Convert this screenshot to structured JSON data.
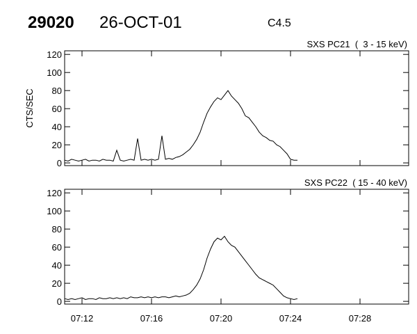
{
  "header": {
    "id": "29020",
    "date": "26-OCT-01",
    "class": "C4.5"
  },
  "chart_data": [
    {
      "type": "line",
      "title": "SXS PC21  (  3 - 15 keV)",
      "y_label": "CTS/SEC",
      "x": [
        431.0,
        431.2,
        431.4,
        431.6,
        431.8,
        432.0,
        432.2,
        432.4,
        432.6,
        432.8,
        433.0,
        433.2,
        433.4,
        433.6,
        433.8,
        434.0,
        434.2,
        434.4,
        434.6,
        434.8,
        435.0,
        435.2,
        435.4,
        435.6,
        435.8,
        436.0,
        436.2,
        436.4,
        436.6,
        436.8,
        437.0,
        437.2,
        437.4,
        437.6,
        437.8,
        438.0,
        438.2,
        438.4,
        438.6,
        438.8,
        439.0,
        439.2,
        439.4,
        439.6,
        439.8,
        440.0,
        440.2,
        440.4,
        440.6,
        440.8,
        441.0,
        441.2,
        441.4,
        441.6,
        441.8,
        442.0,
        442.2,
        442.4,
        442.6,
        442.8,
        443.0,
        443.2,
        443.4,
        443.6,
        443.8,
        444.0,
        444.2,
        444.4
      ],
      "series": [
        {
          "color": "#000000",
          "values": [
            3,
            2,
            4,
            3,
            2,
            3,
            4,
            2,
            3,
            3,
            2,
            4,
            3,
            3,
            2,
            14,
            3,
            2,
            3,
            4,
            3,
            27,
            3,
            4,
            3,
            4,
            3,
            4,
            30,
            4,
            5,
            4,
            6,
            7,
            9,
            12,
            15,
            20,
            26,
            34,
            45,
            55,
            62,
            68,
            72,
            70,
            75,
            80,
            74,
            70,
            66,
            60,
            52,
            50,
            45,
            40,
            34,
            30,
            28,
            25,
            24,
            20,
            18,
            14,
            10,
            4,
            3,
            3
          ]
        }
      ],
      "xlim": [
        431.0,
        450.8
      ],
      "ylim": [
        -3,
        124
      ],
      "yticks": [
        0,
        20,
        40,
        60,
        80,
        100,
        120
      ]
    },
    {
      "type": "line",
      "title": "SXS PC22  ( 15 - 40 keV)",
      "x": [
        431.0,
        431.2,
        431.4,
        431.6,
        431.8,
        432.0,
        432.2,
        432.4,
        432.6,
        432.8,
        433.0,
        433.2,
        433.4,
        433.6,
        433.8,
        434.0,
        434.2,
        434.4,
        434.6,
        434.8,
        435.0,
        435.2,
        435.4,
        435.6,
        435.8,
        436.0,
        436.2,
        436.4,
        436.6,
        436.8,
        437.0,
        437.2,
        437.4,
        437.6,
        437.8,
        438.0,
        438.2,
        438.4,
        438.6,
        438.8,
        439.0,
        439.2,
        439.4,
        439.6,
        439.8,
        440.0,
        440.2,
        440.4,
        440.6,
        440.8,
        441.0,
        441.2,
        441.4,
        441.6,
        441.8,
        442.0,
        442.2,
        442.4,
        442.6,
        442.8,
        443.0,
        443.2,
        443.4,
        443.6,
        443.8,
        444.0,
        444.2,
        444.4
      ],
      "series": [
        {
          "color": "#000000",
          "values": [
            3,
            2,
            3,
            2,
            3,
            4,
            2,
            3,
            3,
            2,
            4,
            3,
            3,
            4,
            3,
            4,
            3,
            4,
            3,
            5,
            4,
            4,
            5,
            4,
            5,
            4,
            5,
            4,
            5,
            5,
            4,
            5,
            6,
            5,
            6,
            7,
            9,
            13,
            18,
            25,
            35,
            48,
            58,
            66,
            70,
            68,
            72,
            66,
            62,
            60,
            55,
            50,
            45,
            40,
            35,
            30,
            26,
            24,
            22,
            20,
            18,
            14,
            10,
            6,
            4,
            3,
            2,
            3
          ]
        }
      ],
      "xlim": [
        431.0,
        450.8
      ],
      "ylim": [
        -3,
        124
      ],
      "yticks": [
        0,
        20,
        40,
        60,
        80,
        100,
        120
      ],
      "xticks": [
        {
          "value": 432,
          "label": "07:12"
        },
        {
          "value": 436,
          "label": "07:16"
        },
        {
          "value": 440,
          "label": "07:20"
        },
        {
          "value": 444,
          "label": "07:24"
        },
        {
          "value": 448,
          "label": "07:28"
        }
      ]
    }
  ]
}
